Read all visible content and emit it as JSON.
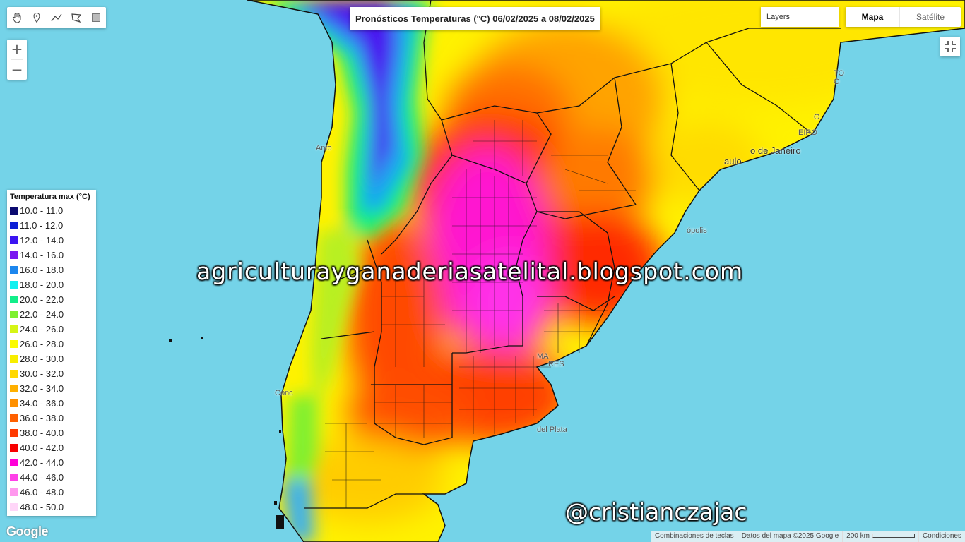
{
  "title": "Pronósticos Temperaturas (°C) 06/02/2025 a 08/02/2025",
  "toolbar": {
    "tools": [
      {
        "name": "hand-pan-icon"
      },
      {
        "name": "marker-icon"
      },
      {
        "name": "polyline-icon"
      },
      {
        "name": "polygon-icon"
      },
      {
        "name": "rectangle-icon"
      }
    ]
  },
  "zoom": {
    "plus": "+",
    "minus": "−"
  },
  "layers": {
    "label": "Layers"
  },
  "map_type": {
    "active": "Mapa",
    "inactive": "Satélite"
  },
  "legend": {
    "title": "Temperatura max (°C)",
    "items": [
      {
        "label": "10.0 - 11.0",
        "color": "#0b0a70"
      },
      {
        "label": "11.0 - 12.0",
        "color": "#0c1fd6"
      },
      {
        "label": "12.0 - 14.0",
        "color": "#3b14f2"
      },
      {
        "label": "14.0 - 16.0",
        "color": "#7a18f0"
      },
      {
        "label": "16.0 - 18.0",
        "color": "#1c86ee"
      },
      {
        "label": "18.0 - 20.0",
        "color": "#12f0f0"
      },
      {
        "label": "20.0 - 22.0",
        "color": "#12ee8a"
      },
      {
        "label": "22.0 - 24.0",
        "color": "#7ef030"
      },
      {
        "label": "24.0 - 26.0",
        "color": "#d6f516"
      },
      {
        "label": "26.0 - 28.0",
        "color": "#fbfb00"
      },
      {
        "label": "28.0 - 30.0",
        "color": "#f8ee00"
      },
      {
        "label": "30.0 - 32.0",
        "color": "#ffd800"
      },
      {
        "label": "32.0 - 34.0",
        "color": "#ffb000"
      },
      {
        "label": "34.0 - 36.0",
        "color": "#ff9000"
      },
      {
        "label": "36.0 - 38.0",
        "color": "#ff6000"
      },
      {
        "label": "38.0 - 40.0",
        "color": "#ff3a00"
      },
      {
        "label": "40.0 - 42.0",
        "color": "#f80000"
      },
      {
        "label": "42.0 - 44.0",
        "color": "#ff00d8"
      },
      {
        "label": "44.0 - 46.0",
        "color": "#ff40e8"
      },
      {
        "label": "46.0 - 48.0",
        "color": "#ff98ee"
      },
      {
        "label": "48.0 - 50.0",
        "color": "#ffd6f8"
      }
    ]
  },
  "map_labels": {
    "rio": "o de Janeiro",
    "paulo": "aulo",
    "polis": "ópolis",
    "plata": "del Plata",
    "anto": "Anto",
    "conce": "Conc",
    "aires": "RES",
    "ma": "MA",
    "to": "TO",
    "o": "O",
    "eiro": "EIRO",
    "o2": "O"
  },
  "watermarks": {
    "blog": "agriculturayganaderiasatelital.blogspot.com",
    "twitter": "@cristianczajac"
  },
  "attribution": {
    "google": "Google",
    "shortcuts": "Combinaciones de teclas",
    "map_data": "Datos del mapa ©2025 Google",
    "scale": "200 km",
    "terms": "Condiciones"
  },
  "colors": {
    "ocean": "#74d3e8"
  }
}
